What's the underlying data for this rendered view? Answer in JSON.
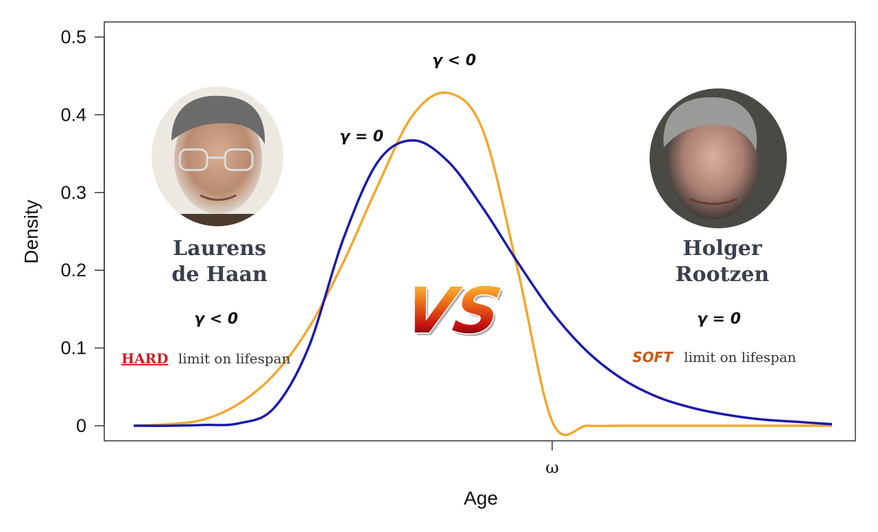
{
  "chart_data": {
    "type": "line",
    "xlabel": "Age",
    "ylabel": "Density",
    "ylim": [
      0,
      0.5
    ],
    "yticks": [
      "0",
      "0.1",
      "0.2",
      "0.3",
      "0.4",
      "0.5"
    ],
    "xticks": [
      "ω"
    ],
    "x": [
      0,
      0.5,
      1,
      1.5,
      2,
      2.5,
      3,
      3.5,
      4,
      4.5,
      5,
      5.5,
      6,
      6.5,
      7,
      7.5,
      8,
      8.5,
      9,
      9.5,
      10
    ],
    "series": [
      {
        "color": "#1a1aa8",
        "values": [
          0,
          0,
          0.001,
          0.003,
          0.022,
          0.1,
          0.24,
          0.34,
          0.367,
          0.34,
          0.28,
          0.21,
          0.145,
          0.095,
          0.06,
          0.037,
          0.023,
          0.014,
          0.008,
          0.005,
          0.002
        ]
      },
      {
        "color": "#f0a830",
        "values": [
          0,
          0.002,
          0.008,
          0.028,
          0.065,
          0.125,
          0.21,
          0.31,
          0.4,
          0.428,
          0.38,
          0.2,
          0.004,
          0,
          0,
          0,
          0,
          0,
          0,
          0,
          0
        ]
      }
    ],
    "annotations": {
      "gamma_orange_peak": "γ < 0",
      "gamma_blue_peak": "γ = 0",
      "left_gamma": "γ < 0",
      "right_gamma": "γ = 0"
    }
  },
  "left_person": {
    "name_line1": "Laurens",
    "name_line2": "de Haan",
    "limit_word": "HARD",
    "limit_rest": "limit on lifespan"
  },
  "right_person": {
    "name_line1": "Holger",
    "name_line2": "Rootzen",
    "limit_word": "SOFT",
    "limit_rest": "limit on lifespan"
  },
  "versus": "VS"
}
